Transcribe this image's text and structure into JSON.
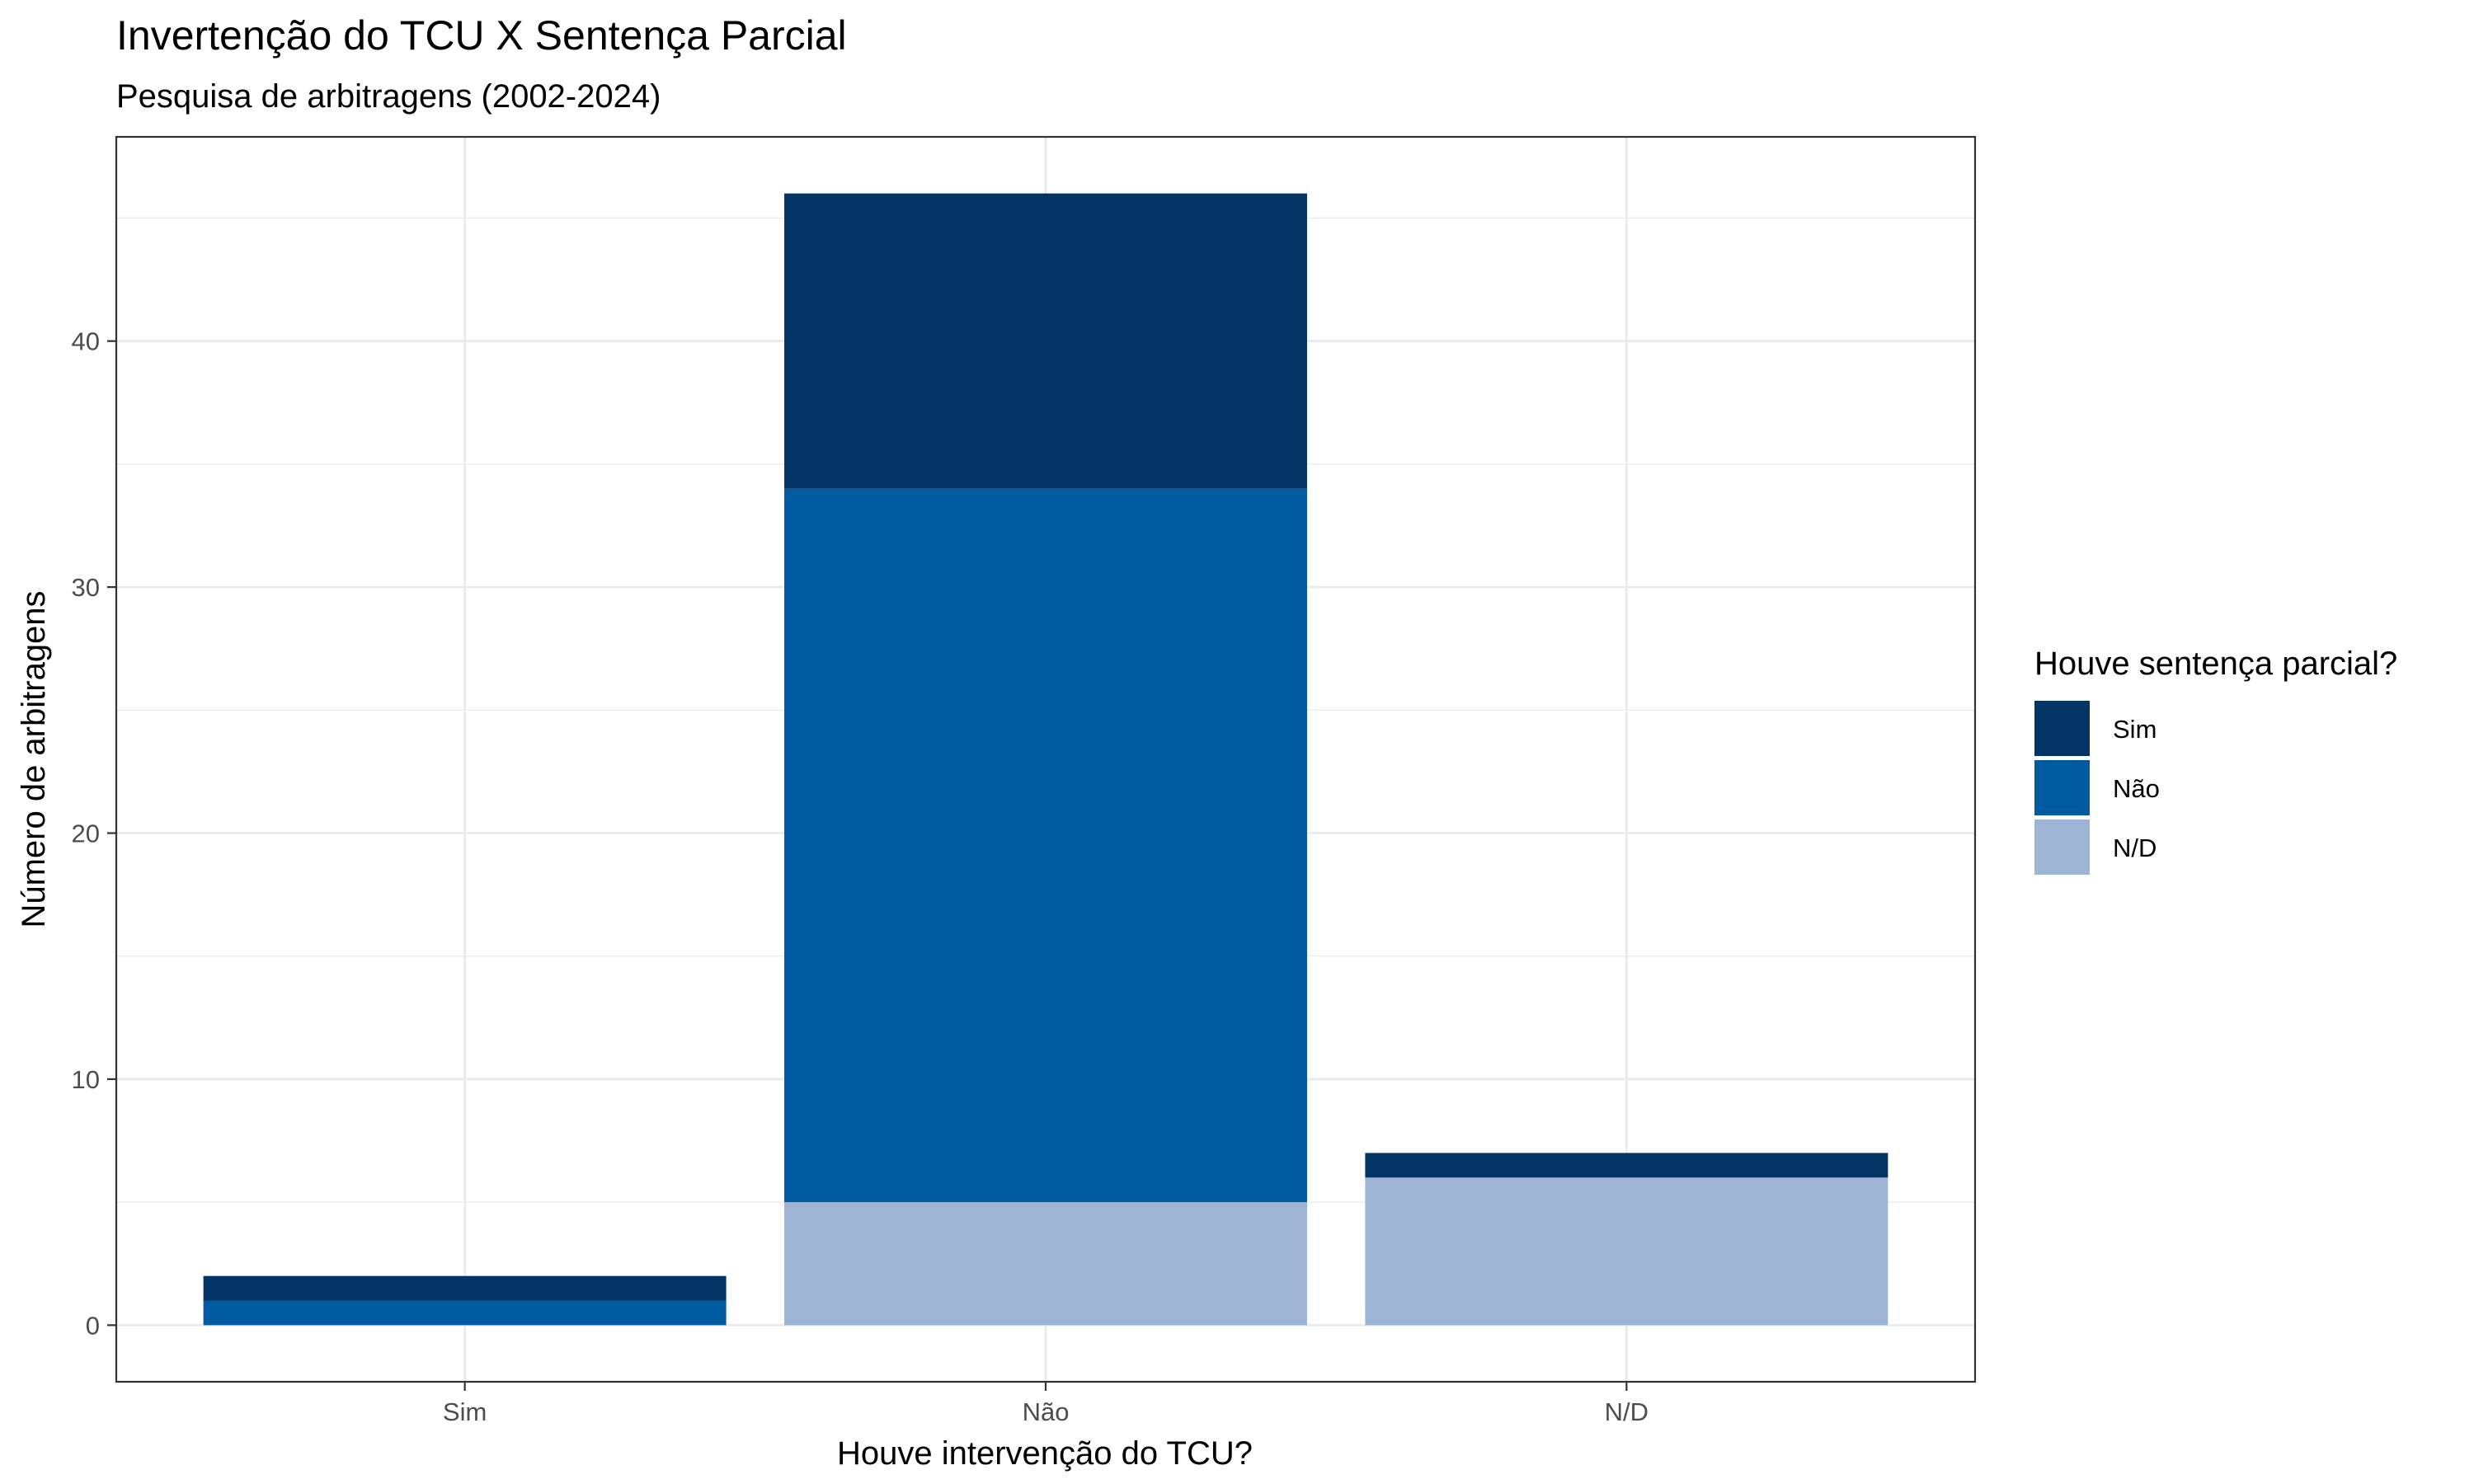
{
  "chart_data": {
    "type": "bar",
    "stacked": true,
    "title": "Invertenção do TCU X Sentença Parcial",
    "subtitle": "Pesquisa de arbitragens (2002-2024)",
    "xlabel": "Houve intervenção do TCU?",
    "ylabel": "Número de arbitragens",
    "categories": [
      "Sim",
      "Não",
      "N/D"
    ],
    "yticks": [
      0,
      10,
      20,
      30,
      40
    ],
    "ylim": [
      -2.3,
      48.3
    ],
    "grid": true,
    "legend": {
      "title": "Houve sentença parcial?",
      "position": "right"
    },
    "series": [
      {
        "name": "N/D",
        "color": "#9db4d5",
        "values": [
          0,
          5,
          6
        ]
      },
      {
        "name": "Não",
        "color": "#005a9f",
        "values": [
          1,
          29,
          0
        ]
      },
      {
        "name": "Sim",
        "color": "#023566",
        "values": [
          1,
          12,
          1
        ]
      }
    ],
    "legend_order": [
      "Sim",
      "Não",
      "N/D"
    ]
  }
}
